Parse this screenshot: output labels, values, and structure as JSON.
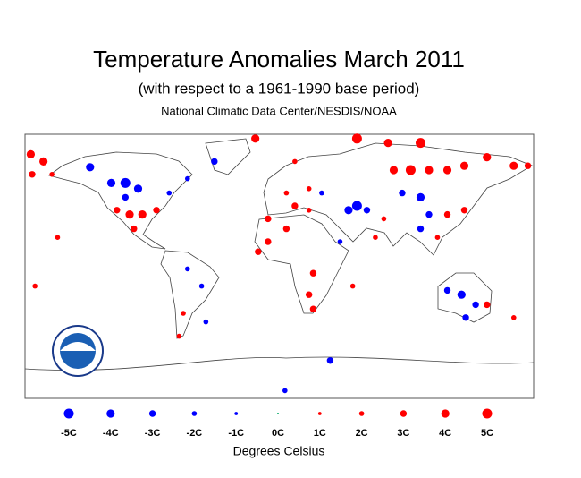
{
  "chart_data": {
    "type": "map",
    "title": "Temperature Anomalies March 2011",
    "subtitle": "(with respect to a 1961-1990 base period)",
    "source": "National Climatic Data Center/NESDIS/NOAA",
    "legend_title": "Degrees Celsius",
    "legend": {
      "values": [
        -5,
        -4,
        -3,
        -2,
        -1,
        0,
        1,
        2,
        3,
        4,
        5
      ],
      "value_labels": [
        "-5C",
        "-4C",
        "-3C",
        "-2C",
        "-1C",
        "0C",
        "1C",
        "2C",
        "3C",
        "4C",
        "5C"
      ]
    },
    "positive_color": "#ff0000",
    "negative_color": "#0000ff",
    "zero_color": "#00aa66",
    "stations": {
      "lon": [
        -176,
        -167,
        -175,
        -161,
        -134,
        -119,
        -109,
        -100,
        -109,
        -115,
        -106,
        -97,
        -87,
        -103,
        -78,
        -65,
        -46,
        -17,
        11,
        21,
        30,
        5,
        11,
        21,
        -8,
        5,
        -8,
        49,
        55,
        62,
        55,
        77,
        100,
        81,
        93,
        106,
        119,
        131,
        147,
        166,
        176,
        87,
        100,
        106,
        100,
        119,
        131,
        112,
        74,
        68,
        43,
        24,
        21,
        24,
        52,
        119,
        129,
        139,
        132,
        147,
        166,
        -65,
        -55,
        -68,
        -71,
        -52,
        36,
        4,
        -15,
        -157,
        -173
      ],
      "lat": [
        76,
        71,
        62,
        62,
        67,
        56,
        56,
        52,
        46,
        37,
        34,
        34,
        37,
        24,
        49,
        59,
        71,
        87,
        71,
        52,
        49,
        49,
        40,
        37,
        31,
        24,
        15,
        37,
        40,
        37,
        87,
        84,
        84,
        65,
        65,
        65,
        65,
        68,
        74,
        68,
        68,
        49,
        46,
        34,
        24,
        34,
        37,
        18,
        31,
        18,
        15,
        -7,
        -22,
        -32,
        -16,
        -19,
        -22,
        -29,
        -38,
        -29,
        -38,
        -4,
        -16,
        -35,
        -51,
        -41,
        -68,
        -89,
        8,
        18,
        -16
      ],
      "anomaly": [
        4,
        4,
        3,
        2,
        -4,
        -4,
        -5,
        -4,
        -3,
        3,
        4,
        4,
        3,
        3,
        -2,
        -2,
        -3,
        4,
        2,
        2,
        -2,
        2,
        3,
        2,
        3,
        3,
        3,
        -4,
        -5,
        -3,
        5,
        4,
        5,
        4,
        5,
        4,
        4,
        4,
        4,
        4,
        3,
        -3,
        -4,
        -3,
        -3,
        3,
        3,
        2,
        2,
        2,
        -2,
        3,
        3,
        3,
        2,
        -3,
        -4,
        -3,
        -3,
        3,
        2,
        -2,
        -2,
        2,
        2,
        -2,
        -3,
        -2,
        3,
        2,
        2
      ]
    }
  }
}
